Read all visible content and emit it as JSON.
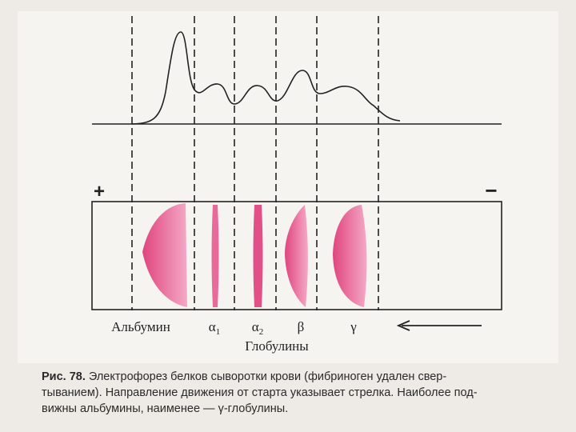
{
  "diagram": {
    "signs": {
      "plus": "+",
      "minus": "−"
    },
    "fractions": [
      {
        "label": "Альбумин"
      },
      {
        "symbol": "α",
        "sub": "1"
      },
      {
        "symbol": "α",
        "sub": "2"
      },
      {
        "symbol": "β"
      },
      {
        "symbol": "γ"
      }
    ],
    "group_label": "Глобулины"
  },
  "caption": {
    "figure": "Рис. 78.",
    "lines": [
      "Электрофорез белков сыворотки крови (фибриноген удален свер-",
      "тыванием). Направление движения от старта указывает стрелка. Наиболее под-",
      "вижны альбумины, наименее — γ-глобулины."
    ]
  }
}
